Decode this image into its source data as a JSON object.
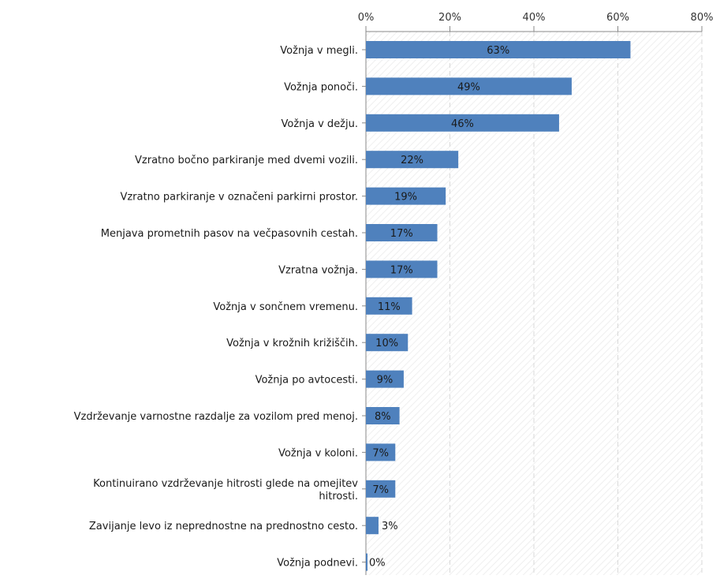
{
  "chart_data": {
    "type": "bar",
    "orientation": "horizontal",
    "categories": [
      "Vožnja v megli.",
      "Vožnja ponoči.",
      "Vožnja v dežju.",
      "Vzratno bočno parkiranje med dvemi vozili.",
      "Vzratno parkiranje v označeni parkirni prostor.",
      "Menjava prometnih pasov na večpasovnih cestah.",
      "Vzratna vožnja.",
      "Vožnja v sončnem vremenu.",
      "Vožnja v krožnih križiščih.",
      "Vožnja po avtocesti.",
      "Vzdrževanje varnostne razdalje za vozilom pred menoj.",
      "Vožnja v koloni.",
      "Kontinuirano vzdrževanje hitrosti glede na omejitev hitrosti.",
      "Zavijanje levo iz neprednostne na prednostno cesto.",
      "Vožnja podnevi."
    ],
    "values": [
      63,
      49,
      46,
      22,
      19,
      17,
      17,
      11,
      10,
      9,
      8,
      7,
      7,
      3,
      0
    ],
    "value_labels": [
      "63%",
      "49%",
      "46%",
      "22%",
      "19%",
      "17%",
      "17%",
      "11%",
      "10%",
      "9%",
      "8%",
      "7%",
      "7%",
      "3%",
      "0%"
    ],
    "xlim": [
      0,
      80
    ],
    "x_ticks": [
      0,
      20,
      40,
      60,
      80
    ],
    "x_tick_labels": [
      "0%",
      "20%",
      "40%",
      "60%",
      "80%"
    ],
    "x_axis_position": "top",
    "title": "",
    "xlabel": "",
    "ylabel": "",
    "grid": true,
    "bar_color": "#4f81bd",
    "label_color": "#1a1a1a"
  }
}
